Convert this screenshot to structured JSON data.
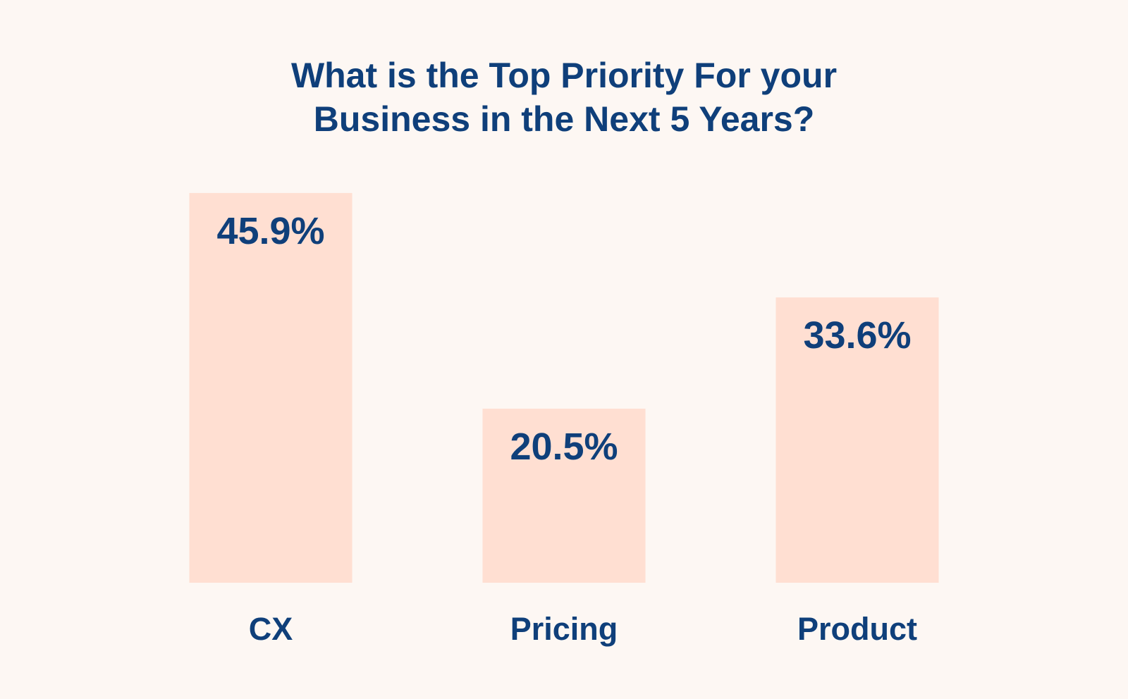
{
  "colors": {
    "background": "#fdf7f3",
    "bar": "#ffdfd2",
    "text": "#0f3f7a"
  },
  "chart_data": {
    "type": "bar",
    "title_lines": [
      "What is the Top Priority For your",
      "Business in the Next 5 Years?"
    ],
    "categories": [
      "CX",
      "Pricing",
      "Product"
    ],
    "values": [
      45.9,
      20.5,
      33.6
    ],
    "value_labels": [
      "45.9%",
      "20.5%",
      "33.6%"
    ],
    "unit": "%",
    "grid": false,
    "legend": "none"
  }
}
